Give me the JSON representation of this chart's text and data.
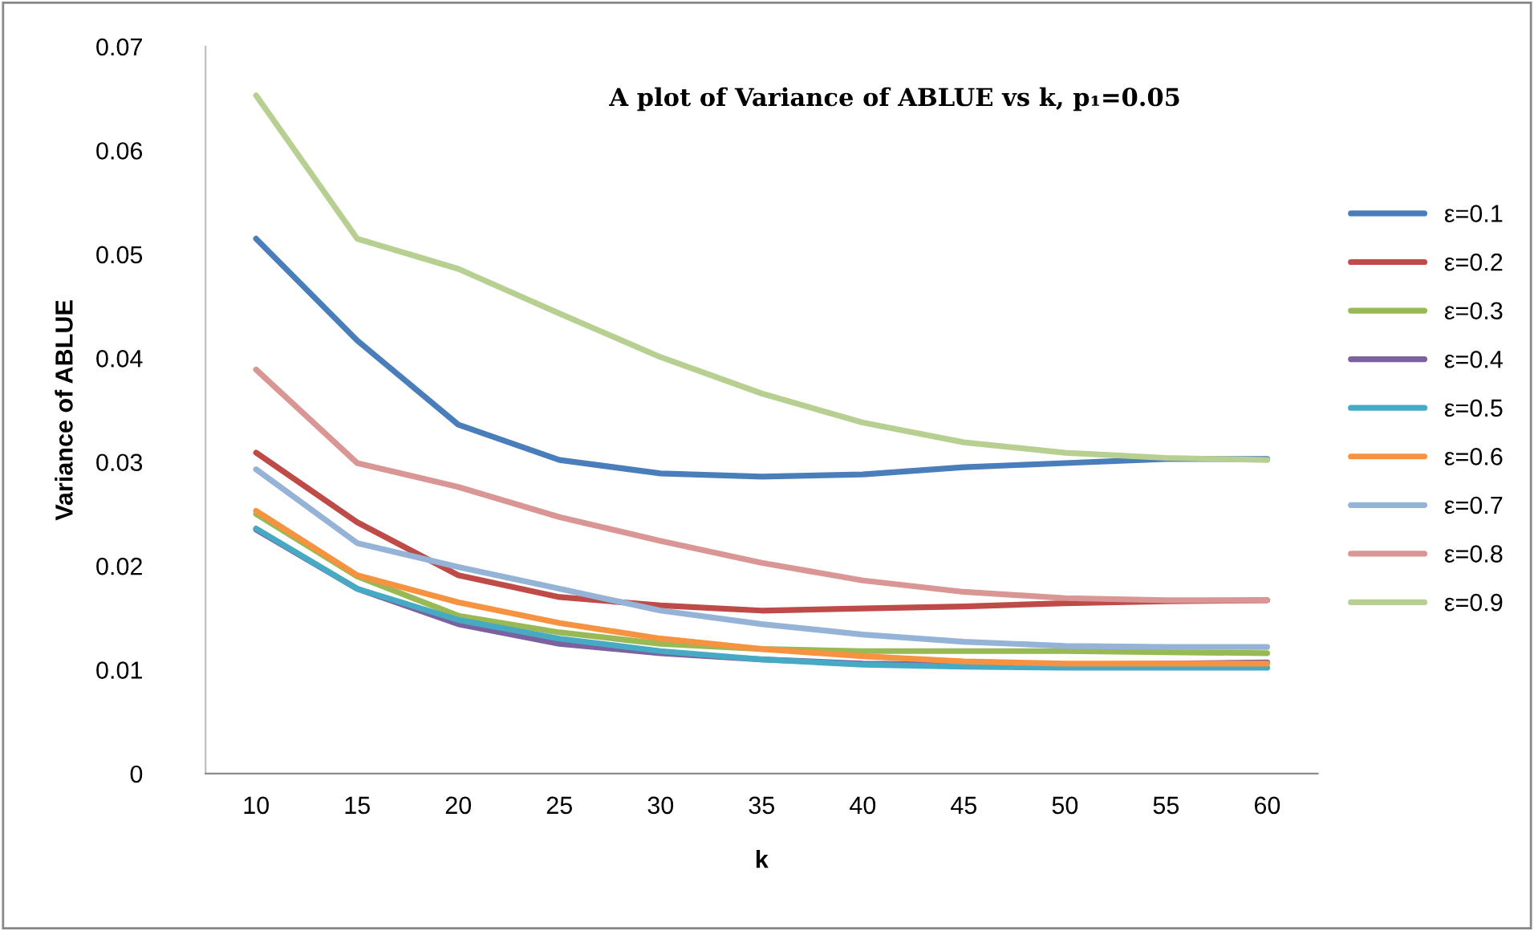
{
  "chart_data": {
    "type": "line",
    "title": "A plot of Variance of ABLUE vs k, p₁=0.05",
    "xlabel": "k",
    "ylabel": "Variance of ABLUE",
    "categories": [
      "10",
      "15",
      "20",
      "25",
      "30",
      "35",
      "40",
      "45",
      "50",
      "55",
      "60"
    ],
    "ylim": [
      0,
      0.07
    ],
    "yticks": [
      {
        "value": 0,
        "label": "0"
      },
      0.01,
      0.02,
      0.03,
      0.04,
      0.05,
      0.06,
      0.07
    ],
    "grid": false,
    "legend": "right",
    "marker": "none",
    "line_style": "solid",
    "series": [
      {
        "name": "ε=0.1",
        "color": "#4a7ebb",
        "values": [
          0.0515,
          0.0417,
          0.0336,
          0.0302,
          0.0289,
          0.0286,
          0.0288,
          0.0295,
          0.0299,
          0.0303,
          0.0303
        ]
      },
      {
        "name": "ε=0.2",
        "color": "#be4b48",
        "values": [
          0.0309,
          0.0242,
          0.0191,
          0.017,
          0.0162,
          0.0157,
          0.0159,
          0.0161,
          0.0164,
          0.0166,
          0.0167
        ]
      },
      {
        "name": "ε=0.3",
        "color": "#98b954",
        "values": [
          0.025,
          0.019,
          0.0152,
          0.0136,
          0.0125,
          0.012,
          0.0118,
          0.0118,
          0.0118,
          0.0117,
          0.0116
        ]
      },
      {
        "name": "ε=0.4",
        "color": "#7d60a0",
        "values": [
          0.0235,
          0.0178,
          0.0144,
          0.0125,
          0.0116,
          0.011,
          0.0106,
          0.0105,
          0.0105,
          0.0106,
          0.0107
        ]
      },
      {
        "name": "ε=0.5",
        "color": "#46aac5",
        "values": [
          0.0236,
          0.0178,
          0.0148,
          0.013,
          0.0118,
          0.011,
          0.0105,
          0.0103,
          0.0102,
          0.0102,
          0.0102
        ]
      },
      {
        "name": "ε=0.6",
        "color": "#f69240",
        "values": [
          0.0253,
          0.0191,
          0.0165,
          0.0145,
          0.013,
          0.012,
          0.0113,
          0.0108,
          0.0106,
          0.0106,
          0.0106
        ]
      },
      {
        "name": "ε=0.7",
        "color": "#95b3d7",
        "values": [
          0.0293,
          0.0222,
          0.0199,
          0.0178,
          0.0157,
          0.0144,
          0.0134,
          0.0127,
          0.0123,
          0.0122,
          0.0122
        ]
      },
      {
        "name": "ε=0.8",
        "color": "#d99694",
        "values": [
          0.0389,
          0.0299,
          0.0276,
          0.0247,
          0.0224,
          0.0203,
          0.0186,
          0.0175,
          0.0169,
          0.0167,
          0.0167
        ]
      },
      {
        "name": "ε=0.9",
        "color": "#b7d092",
        "values": [
          0.0653,
          0.0515,
          0.0486,
          0.0443,
          0.0401,
          0.0366,
          0.0338,
          0.0319,
          0.0309,
          0.0304,
          0.0302
        ]
      }
    ]
  }
}
